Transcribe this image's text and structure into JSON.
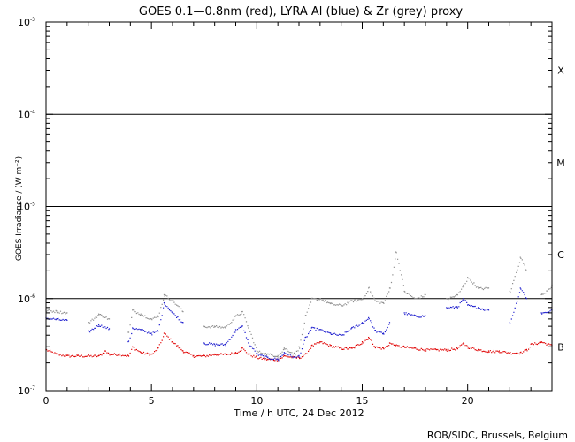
{
  "chart_data": {
    "type": "scatter",
    "title": "GOES 0.1—0.8nm (red), LYRA Al (blue) & Zr (grey) proxy",
    "xlabel": "Time / h UTC, 24 Dec 2012",
    "ylabel": "GOES Irradiance / (W m⁻²)",
    "xlim": [
      0,
      24
    ],
    "ylim": [
      1e-07,
      0.001
    ],
    "yscale": "log",
    "x_ticks": [
      0,
      5,
      10,
      15,
      20
    ],
    "x_tick_labels": [
      "0",
      "5",
      "10",
      "15",
      "20"
    ],
    "y_ticks": [
      {
        "base": "10",
        "exp": "-7"
      },
      {
        "base": "10",
        "exp": "-6"
      },
      {
        "base": "10",
        "exp": "-5"
      },
      {
        "base": "10",
        "exp": "-4"
      },
      {
        "base": "10",
        "exp": "-3"
      }
    ],
    "flare_class_lines": [
      1e-06,
      1e-05,
      0.0001
    ],
    "flare_classes": [
      {
        "label": "B",
        "y": 3e-07
      },
      {
        "label": "C",
        "y": 3e-06
      },
      {
        "label": "M",
        "y": 3e-05
      },
      {
        "label": "X",
        "y": 0.0003
      }
    ],
    "series": [
      {
        "color": "#e00000",
        "x": [
          0,
          0.5,
          1,
          1.5,
          2,
          2.5,
          2.8,
          3,
          3.5,
          3.9,
          4.1,
          4.5,
          5,
          5.3,
          5.6,
          6,
          6.5,
          7,
          7.5,
          8,
          8.5,
          9,
          9.3,
          9.6,
          10,
          10.5,
          11,
          11.3,
          11.8,
          12,
          12.3,
          12.6,
          13,
          13.5,
          14,
          14.5,
          15,
          15.3,
          15.6,
          16,
          16.3,
          16.6,
          17,
          17.5,
          18,
          18.5,
          19,
          19.5,
          19.8,
          20,
          20.5,
          21,
          21.5,
          22,
          22.5,
          22.8,
          23,
          23.5,
          24
        ],
        "y": [
          2.8e-07,
          2.5e-07,
          2.4e-07,
          2.4e-07,
          2.4e-07,
          2.4e-07,
          2.7e-07,
          2.5e-07,
          2.5e-07,
          2.4e-07,
          3e-07,
          2.6e-07,
          2.5e-07,
          2.9e-07,
          4.2e-07,
          3.4e-07,
          2.7e-07,
          2.4e-07,
          2.4e-07,
          2.5e-07,
          2.5e-07,
          2.6e-07,
          2.9e-07,
          2.5e-07,
          2.3e-07,
          2.2e-07,
          2.2e-07,
          2.4e-07,
          2.3e-07,
          2.3e-07,
          2.5e-07,
          3.1e-07,
          3.4e-07,
          3.1e-07,
          2.9e-07,
          2.9e-07,
          3.4e-07,
          3.8e-07,
          3e-07,
          2.9e-07,
          3.3e-07,
          3.1e-07,
          3e-07,
          2.9e-07,
          2.8e-07,
          2.8e-07,
          2.8e-07,
          2.9e-07,
          3.3e-07,
          3e-07,
          2.8e-07,
          2.7e-07,
          2.7e-07,
          2.6e-07,
          2.6e-07,
          2.8e-07,
          3.2e-07,
          3.4e-07,
          3.1e-07
        ]
      },
      {
        "color": "#1a1acd",
        "x": [
          0,
          0.5,
          1,
          1.5,
          2,
          2.5,
          3,
          3.5,
          3.9,
          4.1,
          4.5,
          5,
          5.3,
          5.6,
          6,
          6.5,
          7,
          7.5,
          8,
          8.5,
          9,
          9.3,
          9.6,
          10,
          10.5,
          11,
          11.3,
          11.8,
          12,
          12.3,
          12.6,
          13,
          13.5,
          14,
          14.5,
          15,
          15.3,
          15.6,
          16,
          16.3,
          16.6,
          17,
          17.5,
          18,
          18.5,
          19,
          19.5,
          19.8,
          20,
          20.5,
          21,
          21.5,
          22,
          22.5,
          22.8,
          23,
          23.5,
          24
        ],
        "y": [
          6.2e-07,
          6e-07,
          5.8e-07,
          null,
          4.4e-07,
          5.2e-07,
          4.7e-07,
          null,
          3.4e-07,
          4.8e-07,
          4.6e-07,
          4.2e-07,
          4.5e-07,
          9e-07,
          7e-07,
          5.5e-07,
          null,
          3.3e-07,
          3.2e-07,
          3.2e-07,
          4.6e-07,
          5e-07,
          3.3e-07,
          2.5e-07,
          2.3e-07,
          2.2e-07,
          2.6e-07,
          2.3e-07,
          2.4e-07,
          3.8e-07,
          4.8e-07,
          4.6e-07,
          4.2e-07,
          4e-07,
          4.8e-07,
          5.5e-07,
          6.2e-07,
          4.5e-07,
          4.2e-07,
          5.5e-07,
          null,
          7e-07,
          6.5e-07,
          6.5e-07,
          null,
          8e-07,
          8.2e-07,
          1e-06,
          8.5e-07,
          8e-07,
          7.5e-07,
          null,
          5.5e-07,
          1.3e-06,
          1e-06,
          null,
          7e-07,
          7.5e-07
        ]
      },
      {
        "color": "#8c8c8c",
        "x": [
          0,
          0.5,
          1,
          1.5,
          2,
          2.5,
          3,
          3.5,
          3.9,
          4.1,
          4.5,
          5,
          5.3,
          5.6,
          6,
          6.5,
          7,
          7.5,
          8,
          8.5,
          9,
          9.3,
          9.6,
          10,
          10.5,
          11,
          11.3,
          11.8,
          12,
          12.3,
          12.6,
          13,
          13.5,
          14,
          14.5,
          15,
          15.3,
          15.6,
          16,
          16.3,
          16.6,
          17,
          17.5,
          18,
          18.5,
          19,
          19.5,
          19.8,
          20,
          20.5,
          21,
          21.5,
          22,
          22.5,
          22.8,
          23,
          23.5,
          24
        ],
        "y": [
          7.5e-07,
          7.3e-07,
          7e-07,
          null,
          5.5e-07,
          6.8e-07,
          6e-07,
          null,
          4.3e-07,
          7.5e-07,
          6.8e-07,
          6e-07,
          6.5e-07,
          1.1e-06,
          9.5e-07,
          7.2e-07,
          null,
          5e-07,
          5e-07,
          4.9e-07,
          6.5e-07,
          7.2e-07,
          4.8e-07,
          2.7e-07,
          2.5e-07,
          2.4e-07,
          2.9e-07,
          2.5e-07,
          3e-07,
          6.5e-07,
          1e-06,
          1e-06,
          8.8e-07,
          8.5e-07,
          9.5e-07,
          1e-06,
          1.3e-06,
          9.5e-07,
          9e-07,
          1.3e-06,
          3.2e-06,
          1.2e-06,
          1e-06,
          1.1e-06,
          null,
          1e-06,
          1.1e-06,
          1.4e-06,
          1.7e-06,
          1.3e-06,
          1.3e-06,
          null,
          1.2e-06,
          2.8e-06,
          2e-06,
          null,
          1.1e-06,
          1.4e-06
        ]
      }
    ]
  },
  "credit": "ROB/SIDC, Brussels, Belgium"
}
